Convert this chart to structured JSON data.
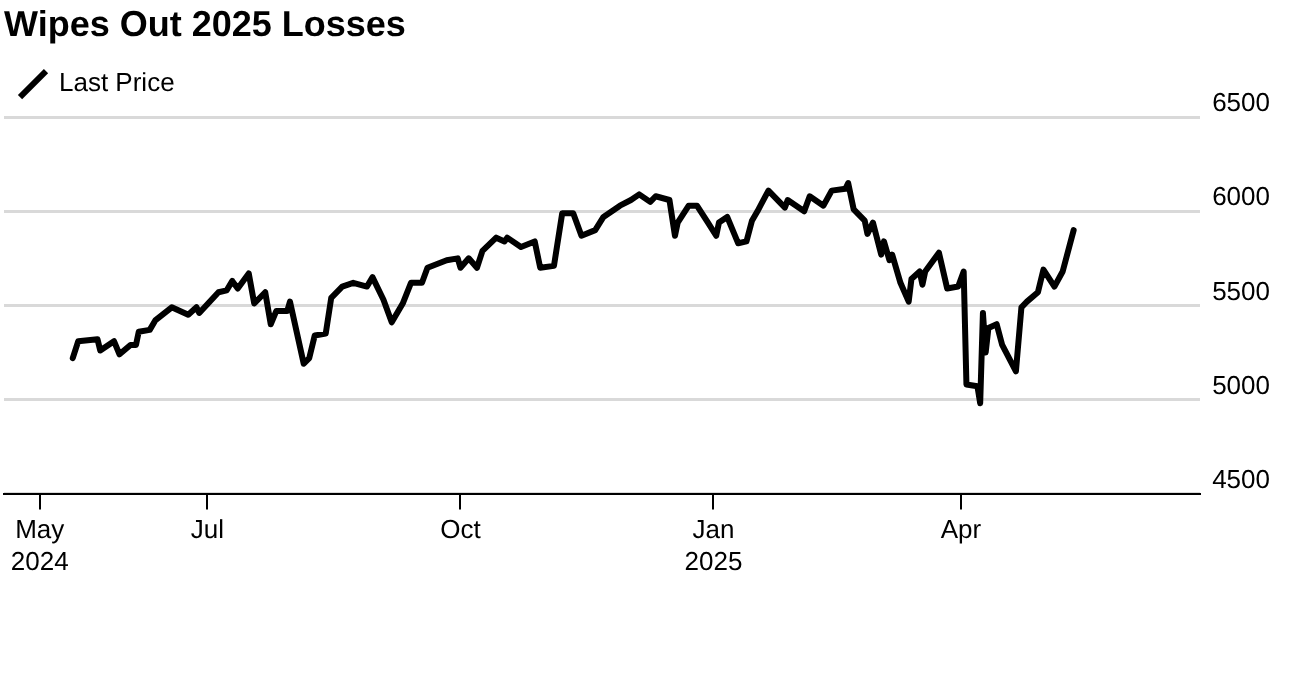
{
  "chart_data": {
    "type": "line",
    "title": "Wipes Out 2025 Losses",
    "x": [
      "2024-05-13",
      "2024-05-15",
      "2024-05-22",
      "2024-05-23",
      "2024-05-28",
      "2024-05-30",
      "2024-06-03",
      "2024-06-05",
      "2024-06-06",
      "2024-06-10",
      "2024-06-12",
      "2024-06-18",
      "2024-06-24",
      "2024-06-27",
      "2024-06-28",
      "2024-07-05",
      "2024-07-08",
      "2024-07-10",
      "2024-07-12",
      "2024-07-16",
      "2024-07-18",
      "2024-07-22",
      "2024-07-24",
      "2024-07-26",
      "2024-07-30",
      "2024-07-31",
      "2024-08-05",
      "2024-08-07",
      "2024-08-09",
      "2024-08-13",
      "2024-08-15",
      "2024-08-19",
      "2024-08-23",
      "2024-08-28",
      "2024-08-30",
      "2024-09-03",
      "2024-09-06",
      "2024-09-10",
      "2024-09-13",
      "2024-09-17",
      "2024-09-19",
      "2024-09-26",
      "2024-09-30",
      "2024-10-01",
      "2024-10-04",
      "2024-10-07",
      "2024-10-09",
      "2024-10-14",
      "2024-10-17",
      "2024-10-18",
      "2024-10-23",
      "2024-10-28",
      "2024-10-30",
      "2024-11-04",
      "2024-11-07",
      "2024-11-11",
      "2024-11-14",
      "2024-11-19",
      "2024-11-22",
      "2024-11-26",
      "2024-11-28",
      "2024-12-02",
      "2024-12-05",
      "2024-12-09",
      "2024-12-11",
      "2024-12-16",
      "2024-12-18",
      "2024-12-19",
      "2024-12-23",
      "2024-12-26",
      "2024-12-30",
      "2025-01-02",
      "2025-01-03",
      "2025-01-06",
      "2025-01-10",
      "2025-01-13",
      "2025-01-15",
      "2025-01-17",
      "2025-01-21",
      "2025-01-27",
      "2025-01-28",
      "2025-02-03",
      "2025-02-05",
      "2025-02-10",
      "2025-02-13",
      "2025-02-18",
      "2025-02-19",
      "2025-02-21",
      "2025-02-25",
      "2025-02-26",
      "2025-02-28",
      "2025-03-03",
      "2025-03-04",
      "2025-03-06",
      "2025-03-07",
      "2025-03-10",
      "2025-03-13",
      "2025-03-14",
      "2025-03-17",
      "2025-03-18",
      "2025-03-19",
      "2025-03-24",
      "2025-03-27",
      "2025-03-31",
      "2025-04-02",
      "2025-04-03",
      "2025-04-07",
      "2025-04-08",
      "2025-04-09",
      "2025-04-10",
      "2025-04-11",
      "2025-04-14",
      "2025-04-16",
      "2025-04-21",
      "2025-04-23",
      "2025-04-25",
      "2025-04-29",
      "2025-05-01",
      "2025-05-05",
      "2025-05-08",
      "2025-05-12"
    ],
    "series": [
      {
        "name": "Last Price",
        "color": "#000000",
        "values": [
          5220,
          5310,
          5320,
          5260,
          5310,
          5240,
          5290,
          5290,
          5360,
          5370,
          5420,
          5490,
          5450,
          5490,
          5460,
          5570,
          5580,
          5630,
          5590,
          5670,
          5510,
          5570,
          5400,
          5470,
          5470,
          5520,
          5190,
          5220,
          5340,
          5350,
          5540,
          5600,
          5620,
          5600,
          5650,
          5530,
          5410,
          5510,
          5620,
          5620,
          5700,
          5740,
          5750,
          5700,
          5750,
          5700,
          5790,
          5860,
          5840,
          5860,
          5810,
          5840,
          5700,
          5710,
          5990,
          5990,
          5870,
          5900,
          5970,
          6010,
          6030,
          6060,
          6090,
          6050,
          6080,
          6060,
          5870,
          5940,
          6030,
          6030,
          5940,
          5870,
          5940,
          5970,
          5830,
          5840,
          5950,
          6000,
          6110,
          6020,
          6060,
          6000,
          6080,
          6030,
          6110,
          6120,
          6150,
          6010,
          5950,
          5880,
          5940,
          5770,
          5840,
          5740,
          5770,
          5620,
          5520,
          5640,
          5680,
          5610,
          5680,
          5780,
          5590,
          5600,
          5680,
          5080,
          5070,
          4980,
          5460,
          5250,
          5380,
          5400,
          5290,
          5150,
          5490,
          5520,
          5570,
          5690,
          5600,
          5680,
          5900
        ]
      }
    ],
    "xlim": [
      "2024-04-18",
      "2025-06-27"
    ],
    "xticks": [
      {
        "value": "2024-05-01",
        "label": "May\n2024"
      },
      {
        "value": "2024-07-01",
        "label": "Jul"
      },
      {
        "value": "2024-10-01",
        "label": "Oct"
      },
      {
        "value": "2025-01-01",
        "label": "Jan\n2025"
      },
      {
        "value": "2025-04-01",
        "label": "Apr"
      }
    ],
    "ylim": [
      4500,
      6500
    ],
    "yticks": [
      4500,
      5000,
      5500,
      6000,
      6500
    ],
    "grid": "y",
    "legend": "top left",
    "marker": "none",
    "line_style": "solid"
  }
}
